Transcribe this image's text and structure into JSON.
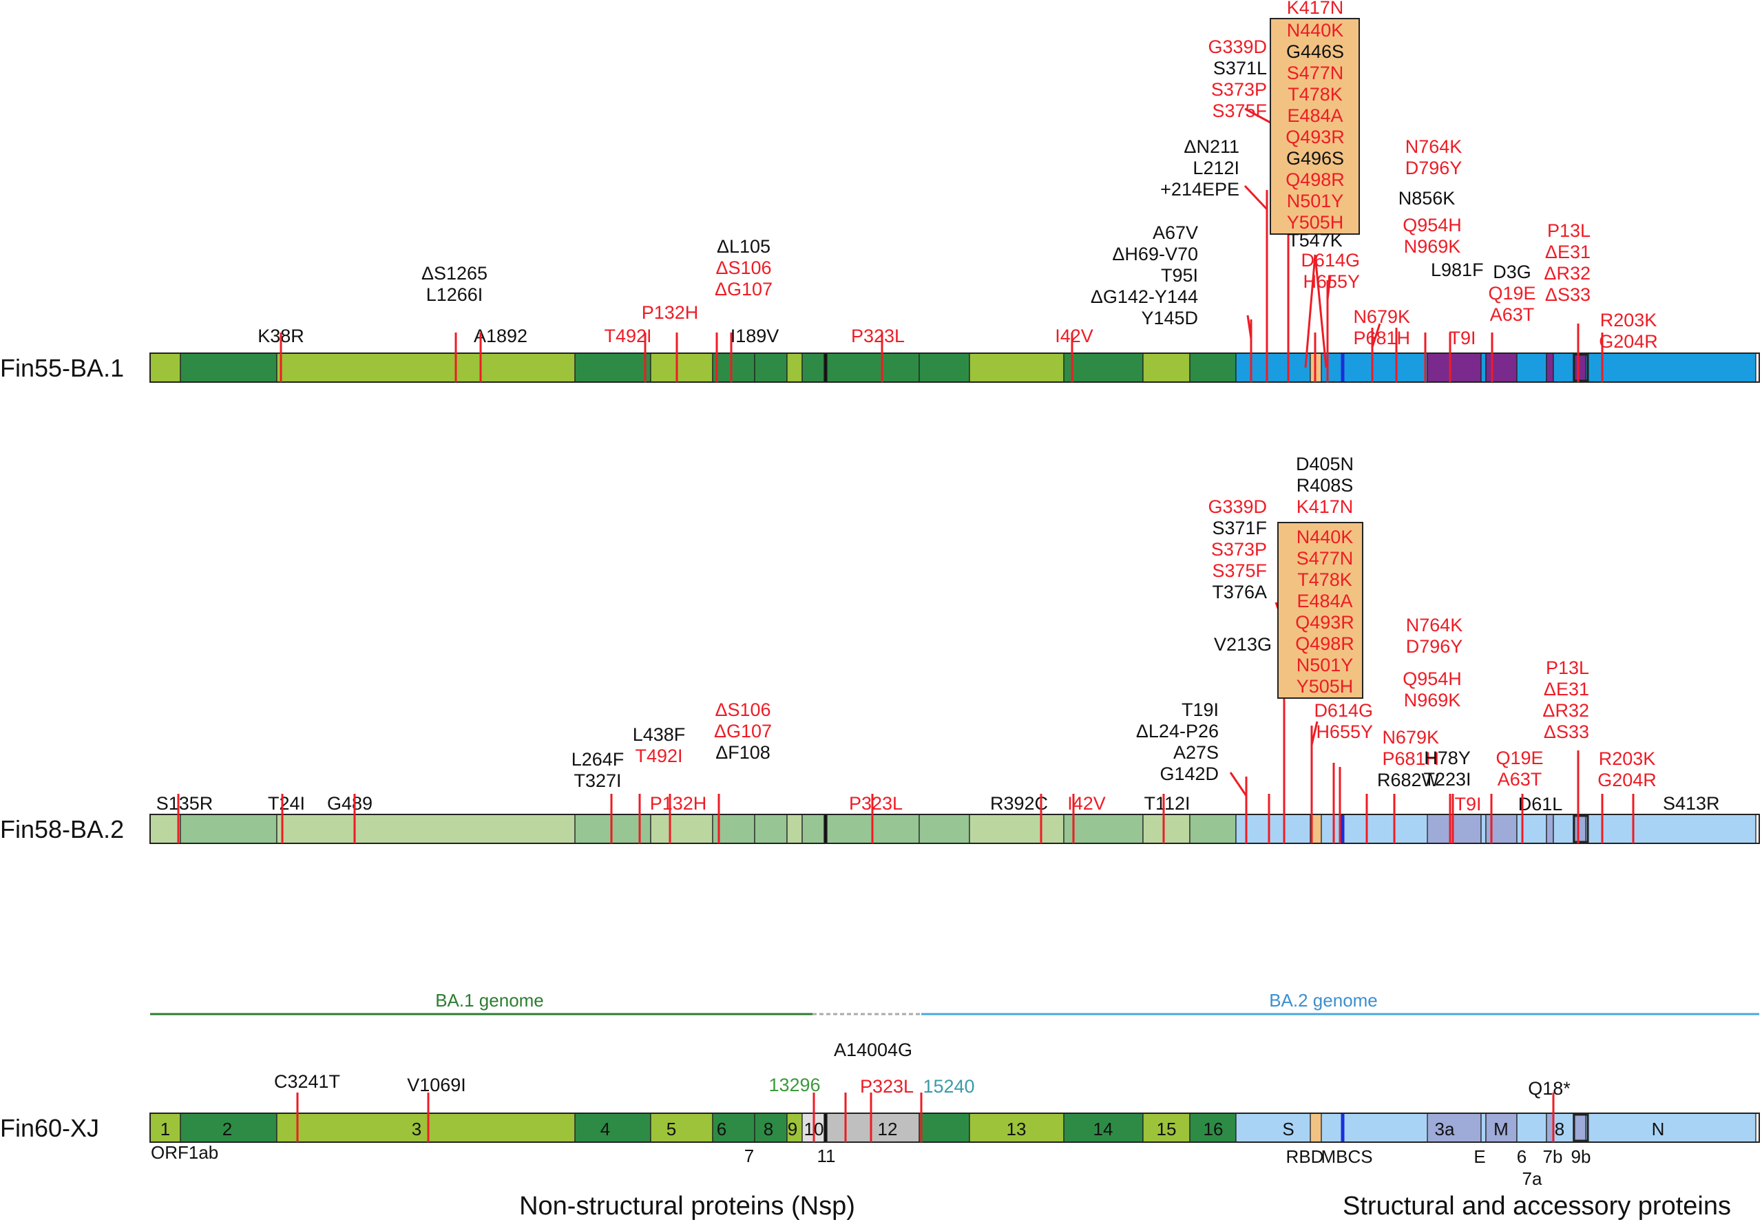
{
  "colors": {
    "red": "#ee1c25",
    "black": "#111111",
    "ba1_line": "#2b7d2f",
    "ba2_line": "#4aa8d8",
    "ba1_label": "#2b7d2f",
    "ba2_label": "#3b8fd0",
    "green_label": "#3a9a3a",
    "teal_label": "#3a9aa8",
    "rbd_box": "#f2c283",
    "gap_line": "#aaaaaa"
  },
  "genomes": [
    {
      "name": "Fin55-BA.1",
      "palette": "bright",
      "bar_label": "Fin55-BA.1",
      "labels": [
        {
          "lines": [
            {
              "t": "K38R",
              "c": "black"
            }
          ]
        },
        {
          "lines": [
            {
              "t": "ΔS1265",
              "c": "black"
            },
            {
              "t": "L1266I",
              "c": "black"
            }
          ]
        },
        {
          "lines": [
            {
              "t": "A1892",
              "c": "black"
            }
          ]
        },
        {
          "lines": [
            {
              "t": "T492I",
              "c": "red"
            }
          ]
        },
        {
          "lines": [
            {
              "t": "P132H",
              "c": "red"
            }
          ]
        },
        {
          "lines": [
            {
              "t": "ΔL105",
              "c": "black"
            },
            {
              "t": "ΔS106",
              "c": "red"
            },
            {
              "t": "ΔG107",
              "c": "red"
            }
          ]
        },
        {
          "lines": [
            {
              "t": "I189V",
              "c": "black"
            }
          ]
        },
        {
          "lines": [
            {
              "t": "P323L",
              "c": "red"
            }
          ]
        },
        {
          "lines": [
            {
              "t": "I42V",
              "c": "red"
            }
          ]
        },
        {
          "lines": [
            {
              "t": "A67V",
              "c": "black"
            },
            {
              "t": "ΔH69-V70",
              "c": "black"
            },
            {
              "t": "T95I",
              "c": "black"
            },
            {
              "t": "ΔG142-Y144",
              "c": "black"
            },
            {
              "t": "Y145D",
              "c": "black"
            }
          ]
        },
        {
          "lines": [
            {
              "t": "ΔN211",
              "c": "black"
            },
            {
              "t": "L212I",
              "c": "black"
            },
            {
              "t": "+214EPE",
              "c": "black"
            }
          ]
        },
        {
          "lines": [
            {
              "t": "G339D",
              "c": "red"
            },
            {
              "t": "S371L",
              "c": "black"
            },
            {
              "t": "S373P",
              "c": "red"
            },
            {
              "t": "S375F",
              "c": "red"
            }
          ]
        },
        {
          "lines": [
            {
              "t": "K417N",
              "c": "red"
            }
          ]
        },
        {
          "lines": [
            {
              "t": "N440K",
              "c": "red"
            },
            {
              "t": "G446S",
              "c": "black"
            },
            {
              "t": "S477N",
              "c": "red"
            },
            {
              "t": "T478K",
              "c": "red"
            },
            {
              "t": "E484A",
              "c": "red"
            },
            {
              "t": "Q493R",
              "c": "red"
            },
            {
              "t": "G496S",
              "c": "black"
            },
            {
              "t": "Q498R",
              "c": "red"
            },
            {
              "t": "N501Y",
              "c": "red"
            },
            {
              "t": "Y505H",
              "c": "red"
            }
          ]
        },
        {
          "lines": [
            {
              "t": "T547K",
              "c": "black"
            }
          ]
        },
        {
          "lines": [
            {
              "t": "D614G",
              "c": "red"
            },
            {
              "t": "H655Y",
              "c": "red"
            }
          ]
        },
        {
          "lines": [
            {
              "t": "N679K",
              "c": "red"
            },
            {
              "t": "P681H",
              "c": "red"
            }
          ]
        },
        {
          "lines": [
            {
              "t": "N764K",
              "c": "red"
            },
            {
              "t": "D796Y",
              "c": "red"
            }
          ]
        },
        {
          "lines": [
            {
              "t": "N856K",
              "c": "black"
            }
          ]
        },
        {
          "lines": [
            {
              "t": "Q954H",
              "c": "red"
            },
            {
              "t": "N969K",
              "c": "red"
            }
          ]
        },
        {
          "lines": [
            {
              "t": "L981F",
              "c": "black"
            }
          ]
        },
        {
          "lines": [
            {
              "t": "T9I",
              "c": "red"
            }
          ]
        },
        {
          "lines": [
            {
              "t": "D3G",
              "c": "black"
            },
            {
              "t": "Q19E",
              "c": "red"
            },
            {
              "t": "A63T",
              "c": "red"
            }
          ]
        },
        {
          "lines": [
            {
              "t": "P13L",
              "c": "red"
            },
            {
              "t": "ΔE31",
              "c": "red"
            },
            {
              "t": "ΔR32",
              "c": "red"
            },
            {
              "t": "ΔS33",
              "c": "red"
            }
          ]
        },
        {
          "lines": [
            {
              "t": "R203K",
              "c": "red"
            },
            {
              "t": "G204R",
              "c": "red"
            }
          ]
        }
      ]
    },
    {
      "name": "Fin58-BA.2",
      "palette": "pale",
      "bar_label": "Fin58-BA.2",
      "labels": [
        {
          "lines": [
            {
              "t": "S135R",
              "c": "black"
            }
          ]
        },
        {
          "lines": [
            {
              "t": "T24I",
              "c": "black"
            }
          ]
        },
        {
          "lines": [
            {
              "t": "G489",
              "c": "black"
            }
          ]
        },
        {
          "lines": [
            {
              "t": "L264F",
              "c": "black"
            },
            {
              "t": "T327I",
              "c": "black"
            }
          ]
        },
        {
          "lines": [
            {
              "t": "L438F",
              "c": "black"
            },
            {
              "t": "T492I",
              "c": "red"
            }
          ]
        },
        {
          "lines": [
            {
              "t": "P132H",
              "c": "red"
            }
          ]
        },
        {
          "lines": [
            {
              "t": "ΔS106",
              "c": "red"
            },
            {
              "t": "ΔG107",
              "c": "red"
            },
            {
              "t": "ΔF108",
              "c": "black"
            }
          ]
        },
        {
          "lines": [
            {
              "t": "P323L",
              "c": "red"
            }
          ]
        },
        {
          "lines": [
            {
              "t": "R392C",
              "c": "black"
            }
          ]
        },
        {
          "lines": [
            {
              "t": "I42V",
              "c": "red"
            }
          ]
        },
        {
          "lines": [
            {
              "t": "T112I",
              "c": "black"
            }
          ]
        },
        {
          "lines": [
            {
              "t": "T19I",
              "c": "black"
            },
            {
              "t": "ΔL24-P26",
              "c": "black"
            },
            {
              "t": "A27S",
              "c": "black"
            },
            {
              "t": "G142D",
              "c": "black"
            }
          ]
        },
        {
          "lines": [
            {
              "t": "V213G",
              "c": "black"
            }
          ]
        },
        {
          "lines": [
            {
              "t": "G339D",
              "c": "red"
            },
            {
              "t": "S371F",
              "c": "black"
            },
            {
              "t": "S373P",
              "c": "red"
            },
            {
              "t": "S375F",
              "c": "red"
            },
            {
              "t": "T376A",
              "c": "black"
            }
          ]
        },
        {
          "lines": [
            {
              "t": "D405N",
              "c": "black"
            },
            {
              "t": "R408S",
              "c": "black"
            },
            {
              "t": "K417N",
              "c": "red"
            }
          ]
        },
        {
          "lines": [
            {
              "t": "N440K",
              "c": "red"
            },
            {
              "t": "S477N",
              "c": "red"
            },
            {
              "t": "T478K",
              "c": "red"
            },
            {
              "t": "E484A",
              "c": "red"
            },
            {
              "t": "Q493R",
              "c": "red"
            },
            {
              "t": "Q498R",
              "c": "red"
            },
            {
              "t": "N501Y",
              "c": "red"
            },
            {
              "t": "Y505H",
              "c": "red"
            }
          ]
        },
        {
          "lines": [
            {
              "t": "D614G",
              "c": "red"
            },
            {
              "t": "H655Y",
              "c": "red"
            }
          ]
        },
        {
          "lines": [
            {
              "t": "N679K",
              "c": "red"
            },
            {
              "t": "P681H",
              "c": "red"
            },
            {
              "t": "R682W",
              "c": "black"
            }
          ]
        },
        {
          "lines": [
            {
              "t": "N764K",
              "c": "red"
            },
            {
              "t": "D796Y",
              "c": "red"
            }
          ]
        },
        {
          "lines": [
            {
              "t": "Q954H",
              "c": "red"
            },
            {
              "t": "N969K",
              "c": "red"
            }
          ]
        },
        {
          "lines": [
            {
              "t": "H78Y",
              "c": "black"
            },
            {
              "t": "T223I",
              "c": "black"
            }
          ]
        },
        {
          "lines": [
            {
              "t": "T9I",
              "c": "red"
            }
          ]
        },
        {
          "lines": [
            {
              "t": "Q19E",
              "c": "red"
            },
            {
              "t": "A63T",
              "c": "red"
            }
          ]
        },
        {
          "lines": [
            {
              "t": "D61L",
              "c": "black"
            }
          ]
        },
        {
          "lines": [
            {
              "t": "P13L",
              "c": "red"
            },
            {
              "t": "ΔE31",
              "c": "red"
            },
            {
              "t": "ΔR32",
              "c": "red"
            },
            {
              "t": "ΔS33",
              "c": "red"
            }
          ]
        },
        {
          "lines": [
            {
              "t": "R203K",
              "c": "red"
            },
            {
              "t": "G204R",
              "c": "red"
            }
          ]
        },
        {
          "lines": [
            {
              "t": "S413R",
              "c": "black"
            }
          ]
        }
      ]
    },
    {
      "name": "Fin60-XJ",
      "palette": "mixed",
      "bar_label": "Fin60-XJ",
      "labels": [
        {
          "lines": [
            {
              "t": "C3241T",
              "c": "black"
            }
          ]
        },
        {
          "lines": [
            {
              "t": "V1069I",
              "c": "black"
            }
          ]
        },
        {
          "lines": [
            {
              "t": "13296",
              "c": "green"
            }
          ]
        },
        {
          "lines": [
            {
              "t": "A14004G",
              "c": "black"
            }
          ]
        },
        {
          "lines": [
            {
              "t": "P323L",
              "c": "red"
            }
          ]
        },
        {
          "lines": [
            {
              "t": "15240",
              "c": "teal"
            }
          ]
        },
        {
          "lines": [
            {
              "t": "Q18*",
              "c": "black"
            }
          ]
        }
      ]
    }
  ],
  "recombination": {
    "ba1_label": "BA.1 genome",
    "ba2_label": "BA.2 genome"
  },
  "segments": {
    "inside": [
      "1",
      "2",
      "3",
      "4",
      "5",
      "6",
      "8",
      "9",
      "10",
      "12",
      "13",
      "14",
      "15",
      "16",
      "S",
      "3a",
      "M",
      "8",
      "N"
    ],
    "below": [
      "ORF1ab",
      "7",
      "11",
      "RBD",
      "MBCS",
      "E",
      "6",
      "7b",
      "9b",
      "7a"
    ]
  },
  "footer": {
    "nsp": "Non-structural proteins (Nsp)",
    "structural": "Structural and accessory proteins"
  }
}
